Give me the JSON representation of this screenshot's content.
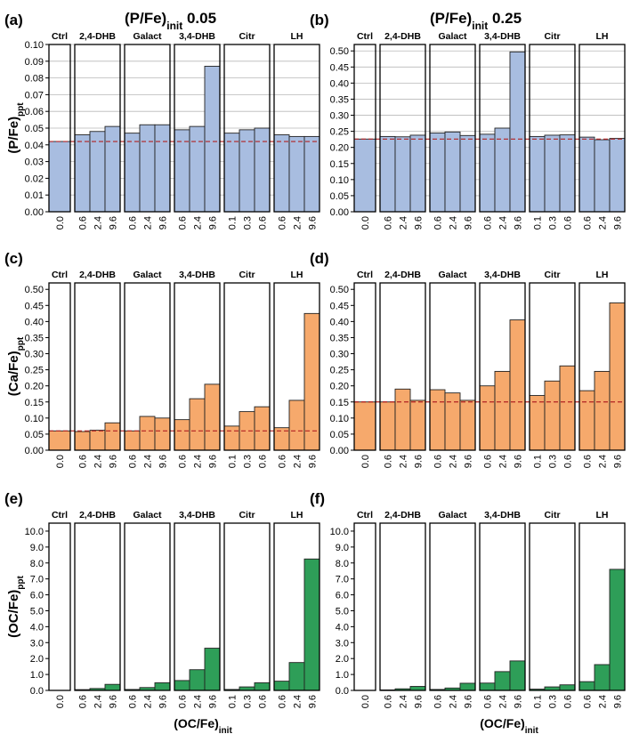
{
  "figure": {
    "column_titles": [
      {
        "main": "(P/Fe)",
        "sub": "init",
        "value": " 0.05"
      },
      {
        "main": "(P/Fe)",
        "sub": "init",
        "value": " 0.25"
      }
    ],
    "x_axis_title": {
      "main": "(OC/Fe)",
      "sub": "init"
    },
    "group_labels": [
      "Ctrl",
      "2,4-DHB",
      "Galact",
      "3,4-DHB",
      "Citr",
      "LH"
    ],
    "group_x_ticks": [
      [
        "0.0"
      ],
      [
        "0.6",
        "2.4",
        "9.6"
      ],
      [
        "0.6",
        "2.4",
        "9.6"
      ],
      [
        "0.6",
        "2.4",
        "9.6"
      ],
      [
        "0.1",
        "0.3",
        "0.6"
      ],
      [
        "0.6",
        "2.4",
        "9.6"
      ]
    ],
    "y_axis_titles": [
      {
        "main": "(P/Fe)",
        "sub": "ppt"
      },
      {
        "main": "(Ca/Fe)",
        "sub": "ppt"
      },
      {
        "main": "(OC/Fe)",
        "sub": "ppt"
      }
    ]
  },
  "colors": {
    "p_fill": "#a8bde0",
    "ca_fill": "#f6a96c",
    "oc_fill": "#2e9e58",
    "ref_line": "#b22222"
  },
  "chart_data": [
    {
      "panel": "(a)",
      "type": "bar",
      "ylim": [
        0,
        0.1
      ],
      "yticks": [
        "0.00",
        "0.01",
        "0.02",
        "0.03",
        "0.04",
        "0.05",
        "0.06",
        "0.07",
        "0.08",
        "0.09",
        "0.10"
      ],
      "reference_line": 0.042,
      "grid": true,
      "groups": [
        {
          "name": "Ctrl",
          "x": [
            "0.0"
          ],
          "values": [
            0.042
          ]
        },
        {
          "name": "2,4-DHB",
          "x": [
            "0.6",
            "2.4",
            "9.6"
          ],
          "values": [
            0.046,
            0.048,
            0.051
          ]
        },
        {
          "name": "Galact",
          "x": [
            "0.6",
            "2.4",
            "9.6"
          ],
          "values": [
            0.047,
            0.052,
            0.052
          ]
        },
        {
          "name": "3,4-DHB",
          "x": [
            "0.6",
            "2.4",
            "9.6"
          ],
          "values": [
            0.049,
            0.051,
            0.087
          ]
        },
        {
          "name": "Citr",
          "x": [
            "0.1",
            "0.3",
            "0.6"
          ],
          "values": [
            0.047,
            0.049,
            0.05
          ]
        },
        {
          "name": "LH",
          "x": [
            "0.6",
            "2.4",
            "9.6"
          ],
          "values": [
            0.046,
            0.045,
            0.045
          ]
        }
      ]
    },
    {
      "panel": "(b)",
      "type": "bar",
      "ylim": [
        0,
        0.52
      ],
      "yticks": [
        "0.00",
        "0.05",
        "0.10",
        "0.15",
        "0.20",
        "0.25",
        "0.30",
        "0.35",
        "0.40",
        "0.45",
        "0.50"
      ],
      "reference_line": 0.226,
      "grid": true,
      "groups": [
        {
          "name": "Ctrl",
          "x": [
            "0.0"
          ],
          "values": [
            0.226
          ]
        },
        {
          "name": "2,4-DHB",
          "x": [
            "0.6",
            "2.4",
            "9.6"
          ],
          "values": [
            0.234,
            0.233,
            0.238
          ]
        },
        {
          "name": "Galact",
          "x": [
            "0.6",
            "2.4",
            "9.6"
          ],
          "values": [
            0.245,
            0.248,
            0.237
          ]
        },
        {
          "name": "3,4-DHB",
          "x": [
            "0.6",
            "2.4",
            "9.6"
          ],
          "values": [
            0.241,
            0.26,
            0.497
          ]
        },
        {
          "name": "Citr",
          "x": [
            "0.1",
            "0.3",
            "0.6"
          ],
          "values": [
            0.234,
            0.238,
            0.239
          ]
        },
        {
          "name": "LH",
          "x": [
            "0.6",
            "2.4",
            "9.6"
          ],
          "values": [
            0.232,
            0.224,
            0.228
          ]
        }
      ]
    },
    {
      "panel": "(c)",
      "type": "bar",
      "ylim": [
        0,
        0.52
      ],
      "yticks": [
        "0.00",
        "0.05",
        "0.10",
        "0.15",
        "0.20",
        "0.25",
        "0.30",
        "0.35",
        "0.40",
        "0.45",
        "0.50"
      ],
      "reference_line": 0.06,
      "grid": false,
      "groups": [
        {
          "name": "Ctrl",
          "x": [
            "0.0"
          ],
          "values": [
            0.06
          ]
        },
        {
          "name": "2,4-DHB",
          "x": [
            "0.6",
            "2.4",
            "9.6"
          ],
          "values": [
            0.058,
            0.062,
            0.085
          ]
        },
        {
          "name": "Galact",
          "x": [
            "0.6",
            "2.4",
            "9.6"
          ],
          "values": [
            0.06,
            0.105,
            0.1
          ]
        },
        {
          "name": "3,4-DHB",
          "x": [
            "0.6",
            "2.4",
            "9.6"
          ],
          "values": [
            0.095,
            0.16,
            0.205
          ]
        },
        {
          "name": "Citr",
          "x": [
            "0.1",
            "0.3",
            "0.6"
          ],
          "values": [
            0.075,
            0.12,
            0.135
          ]
        },
        {
          "name": "LH",
          "x": [
            "0.6",
            "2.4",
            "9.6"
          ],
          "values": [
            0.07,
            0.155,
            0.425
          ]
        }
      ]
    },
    {
      "panel": "(d)",
      "type": "bar",
      "ylim": [
        0,
        0.52
      ],
      "yticks": [
        "0.00",
        "0.05",
        "0.10",
        "0.15",
        "0.20",
        "0.25",
        "0.30",
        "0.35",
        "0.40",
        "0.45",
        "0.50"
      ],
      "reference_line": 0.15,
      "grid": false,
      "groups": [
        {
          "name": "Ctrl",
          "x": [
            "0.0"
          ],
          "values": [
            0.15
          ]
        },
        {
          "name": "2,4-DHB",
          "x": [
            "0.6",
            "2.4",
            "9.6"
          ],
          "values": [
            0.15,
            0.19,
            0.155
          ]
        },
        {
          "name": "Galact",
          "x": [
            "0.6",
            "2.4",
            "9.6"
          ],
          "values": [
            0.188,
            0.178,
            0.155
          ]
        },
        {
          "name": "3,4-DHB",
          "x": [
            "0.6",
            "2.4",
            "9.6"
          ],
          "values": [
            0.2,
            0.245,
            0.405
          ]
        },
        {
          "name": "Citr",
          "x": [
            "0.1",
            "0.3",
            "0.6"
          ],
          "values": [
            0.17,
            0.215,
            0.262
          ]
        },
        {
          "name": "LH",
          "x": [
            "0.6",
            "2.4",
            "9.6"
          ],
          "values": [
            0.185,
            0.245,
            0.458
          ]
        }
      ]
    },
    {
      "panel": "(e)",
      "type": "bar",
      "ylim": [
        0,
        10.5
      ],
      "yticks": [
        "0.0",
        "1.0",
        "2.0",
        "3.0",
        "4.0",
        "5.0",
        "6.0",
        "7.0",
        "8.0",
        "9.0",
        "10.0"
      ],
      "reference_line": null,
      "grid": false,
      "groups": [
        {
          "name": "Ctrl",
          "x": [
            "0.0"
          ],
          "values": [
            0.0
          ]
        },
        {
          "name": "2,4-DHB",
          "x": [
            "0.6",
            "2.4",
            "9.6"
          ],
          "values": [
            0.05,
            0.12,
            0.38
          ]
        },
        {
          "name": "Galact",
          "x": [
            "0.6",
            "2.4",
            "9.6"
          ],
          "values": [
            0.06,
            0.18,
            0.48
          ]
        },
        {
          "name": "3,4-DHB",
          "x": [
            "0.6",
            "2.4",
            "9.6"
          ],
          "values": [
            0.62,
            1.3,
            2.65
          ]
        },
        {
          "name": "Citr",
          "x": [
            "0.1",
            "0.3",
            "0.6"
          ],
          "values": [
            0.06,
            0.22,
            0.48
          ]
        },
        {
          "name": "LH",
          "x": [
            "0.6",
            "2.4",
            "9.6"
          ],
          "values": [
            0.58,
            1.75,
            8.25
          ]
        }
      ]
    },
    {
      "panel": "(f)",
      "type": "bar",
      "ylim": [
        0,
        10.5
      ],
      "yticks": [
        "0.0",
        "1.0",
        "2.0",
        "3.0",
        "4.0",
        "5.0",
        "6.0",
        "7.0",
        "8.0",
        "9.0",
        "10.0"
      ],
      "reference_line": null,
      "grid": false,
      "groups": [
        {
          "name": "Ctrl",
          "x": [
            "0.0"
          ],
          "values": [
            0.0
          ]
        },
        {
          "name": "2,4-DHB",
          "x": [
            "0.6",
            "2.4",
            "9.6"
          ],
          "values": [
            0.03,
            0.1,
            0.25
          ]
        },
        {
          "name": "Galact",
          "x": [
            "0.6",
            "2.4",
            "9.6"
          ],
          "values": [
            0.06,
            0.15,
            0.45
          ]
        },
        {
          "name": "3,4-DHB",
          "x": [
            "0.6",
            "2.4",
            "9.6"
          ],
          "values": [
            0.46,
            1.18,
            1.85
          ]
        },
        {
          "name": "Citr",
          "x": [
            "0.1",
            "0.3",
            "0.6"
          ],
          "values": [
            0.08,
            0.22,
            0.35
          ]
        },
        {
          "name": "LH",
          "x": [
            "0.6",
            "2.4",
            "9.6"
          ],
          "values": [
            0.55,
            1.62,
            7.6
          ]
        }
      ]
    }
  ]
}
